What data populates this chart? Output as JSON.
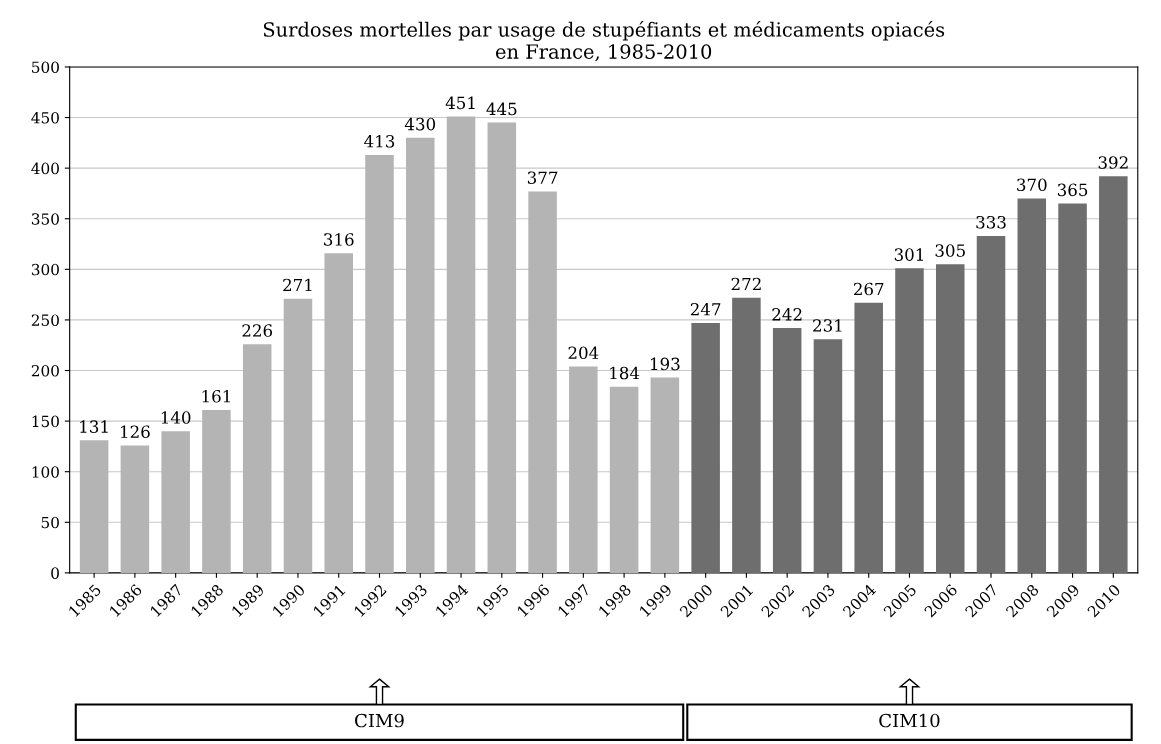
{
  "chart_data": {
    "type": "bar",
    "title": "Surdoses mortelles par usage de stupéfiants et médicaments opiacés\nen France, 1985-2010",
    "categories": [
      "1985",
      "1986",
      "1987",
      "1988",
      "1989",
      "1990",
      "1991",
      "1992",
      "1993",
      "1994",
      "1995",
      "1996",
      "1997",
      "1998",
      "1999",
      "2000",
      "2001",
      "2002",
      "2003",
      "2004",
      "2005",
      "2006",
      "2007",
      "2008",
      "2009",
      "2010"
    ],
    "values": [
      131,
      126,
      140,
      161,
      226,
      271,
      316,
      413,
      430,
      451,
      445,
      377,
      204,
      184,
      193,
      247,
      272,
      242,
      231,
      267,
      301,
      305,
      333,
      370,
      365,
      392
    ],
    "colors": [
      "#b4b4b4",
      "#b4b4b4",
      "#b4b4b4",
      "#b4b4b4",
      "#b4b4b4",
      "#b4b4b4",
      "#b4b4b4",
      "#b4b4b4",
      "#b4b4b4",
      "#b4b4b4",
      "#b4b4b4",
      "#b4b4b4",
      "#b4b4b4",
      "#b4b4b4",
      "#b4b4b4",
      "#6e6e6e",
      "#6e6e6e",
      "#6e6e6e",
      "#6e6e6e",
      "#6e6e6e",
      "#6e6e6e",
      "#6e6e6e",
      "#6e6e6e",
      "#6e6e6e",
      "#6e6e6e",
      "#6e6e6e"
    ],
    "ylim": [
      0,
      500
    ],
    "yticks": [
      0,
      50,
      100,
      150,
      200,
      250,
      300,
      350,
      400,
      450,
      500
    ],
    "grid": "y",
    "data_labels": true,
    "annotations": [
      "CIM9",
      "CIM10"
    ]
  }
}
